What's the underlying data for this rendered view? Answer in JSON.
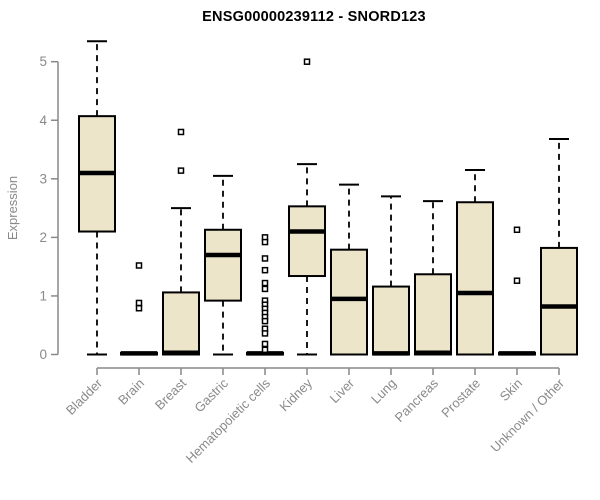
{
  "chart_data": {
    "type": "boxplot",
    "title": "ENSG00000239112 - SNORD123",
    "ylabel": "Expression",
    "xlabel": "",
    "ylim": [
      0,
      5
    ],
    "yticks": [
      0,
      1,
      2,
      3,
      4,
      5
    ],
    "grid": false,
    "legend": "none",
    "categories": [
      "Bladder",
      "Brain",
      "Breast",
      "Gastric",
      "Hematopoietic cells",
      "Kidney",
      "Liver",
      "Lung",
      "Pancreas",
      "Prostate",
      "Skin",
      "Unknown / Other"
    ],
    "series": [
      {
        "category": "Bladder",
        "low": 0,
        "q1": 2.1,
        "median": 3.1,
        "q3": 4.07,
        "high": 5.35,
        "outliers": []
      },
      {
        "category": "Brain",
        "low": 0,
        "q1": 0.0,
        "median": 0.02,
        "q3": 0.03,
        "high": 0.04,
        "outliers": [
          1.52,
          0.88,
          0.79
        ]
      },
      {
        "category": "Breast",
        "low": 0,
        "q1": 0.0,
        "median": 0.03,
        "q3": 1.06,
        "high": 2.5,
        "outliers": [
          3.8,
          3.14
        ]
      },
      {
        "category": "Gastric",
        "low": 0,
        "q1": 0.92,
        "median": 1.7,
        "q3": 2.13,
        "high": 3.05,
        "outliers": []
      },
      {
        "category": "Hematopoietic cells",
        "low": 0,
        "q1": 0.0,
        "median": 0.02,
        "q3": 0.03,
        "high": 0.04,
        "outliers": [
          2.0,
          1.92,
          1.64,
          1.44,
          1.22,
          1.12,
          0.92,
          0.85,
          0.78,
          0.71,
          0.64,
          0.57,
          0.44,
          0.36,
          0.18,
          0.08
        ]
      },
      {
        "category": "Kidney",
        "low": 0,
        "q1": 1.34,
        "median": 2.1,
        "q3": 2.53,
        "high": 3.25,
        "outliers": [
          5.0
        ]
      },
      {
        "category": "Liver",
        "low": 0,
        "q1": 0.0,
        "median": 0.95,
        "q3": 1.79,
        "high": 2.9,
        "outliers": []
      },
      {
        "category": "Lung",
        "low": 0,
        "q1": 0.0,
        "median": 0.02,
        "q3": 1.16,
        "high": 2.7,
        "outliers": []
      },
      {
        "category": "Pancreas",
        "low": 0,
        "q1": 0.0,
        "median": 0.03,
        "q3": 1.37,
        "high": 2.62,
        "outliers": []
      },
      {
        "category": "Prostate",
        "low": 0,
        "q1": 0.0,
        "median": 1.05,
        "q3": 2.6,
        "high": 3.15,
        "outliers": []
      },
      {
        "category": "Skin",
        "low": 0,
        "q1": 0.0,
        "median": 0.02,
        "q3": 0.03,
        "high": 0.04,
        "outliers": [
          2.13,
          1.26
        ]
      },
      {
        "category": "Unknown / Other",
        "low": 0,
        "q1": 0.0,
        "median": 0.82,
        "q3": 1.82,
        "high": 3.68,
        "outliers": []
      }
    ],
    "colors": {
      "box_fill": "#ECE5CA",
      "box_border": "#000000",
      "median": "#000000",
      "whisker": "#000000",
      "outlier_stroke": "#000000",
      "outlier_fill": "#ffffff",
      "axis": "#898989",
      "tick_text": "#8a8a8a",
      "title_text": "#000000",
      "background": "#ffffff"
    }
  }
}
